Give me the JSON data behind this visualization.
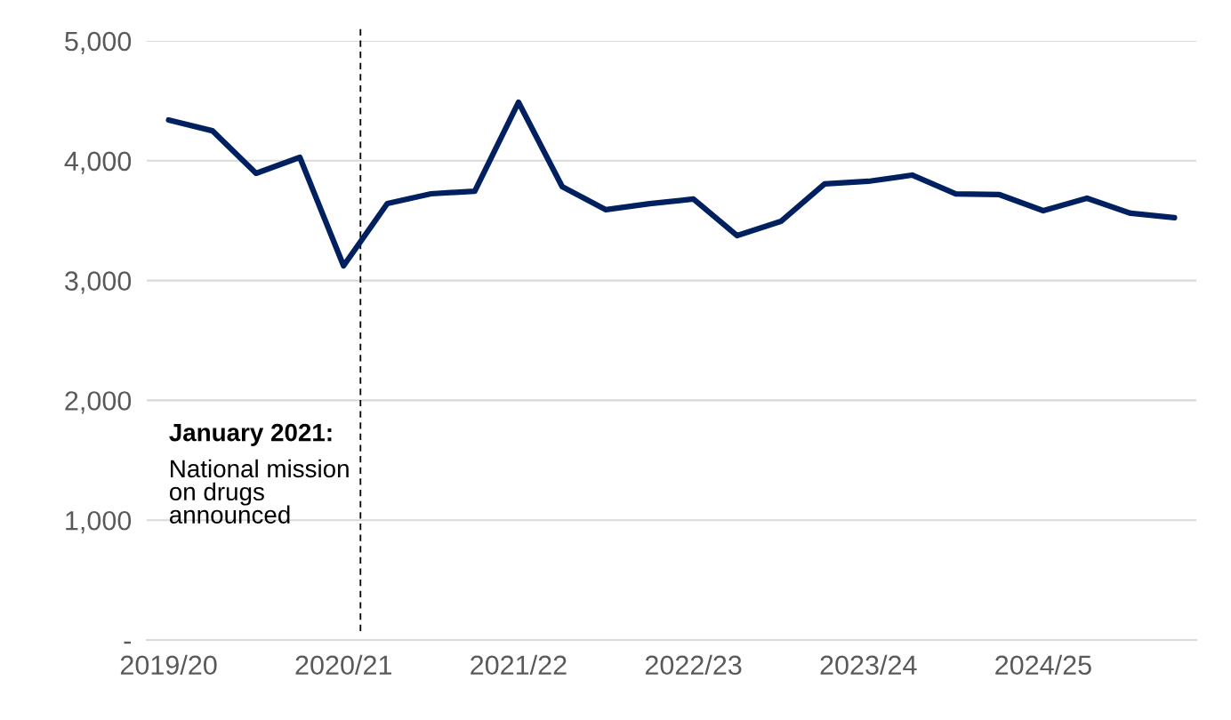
{
  "chart_data": {
    "type": "line",
    "categories": [
      "2019/20",
      null,
      null,
      null,
      "2020/21",
      null,
      null,
      null,
      "2021/22",
      null,
      null,
      null,
      "2022/23",
      null,
      null,
      null,
      "2023/24",
      null,
      null,
      null,
      "2024/25",
      null,
      null,
      null
    ],
    "series": [
      {
        "color": "#002060",
        "values": [
          4340,
          4250,
          3895,
          4028,
          3123,
          3642,
          3724,
          3746,
          4488,
          3783,
          3591,
          3642,
          3680,
          3375,
          3494,
          3806,
          3828,
          3880,
          3724,
          3717,
          3583,
          3687,
          3561,
          3524
        ]
      }
    ],
    "ylim": [
      0,
      5000
    ],
    "yticks": [
      {
        "value": 0,
        "label": "-"
      },
      {
        "value": 1000,
        "label": "1,000"
      },
      {
        "value": 2000,
        "label": "2,000"
      },
      {
        "value": 3000,
        "label": "3,000"
      },
      {
        "value": 4000,
        "label": "4,000"
      },
      {
        "value": 5000,
        "label": "5,000"
      }
    ],
    "grid": "y",
    "annotations": [
      "January 2021:",
      "National mission\non drugs\nannounced"
    ]
  }
}
